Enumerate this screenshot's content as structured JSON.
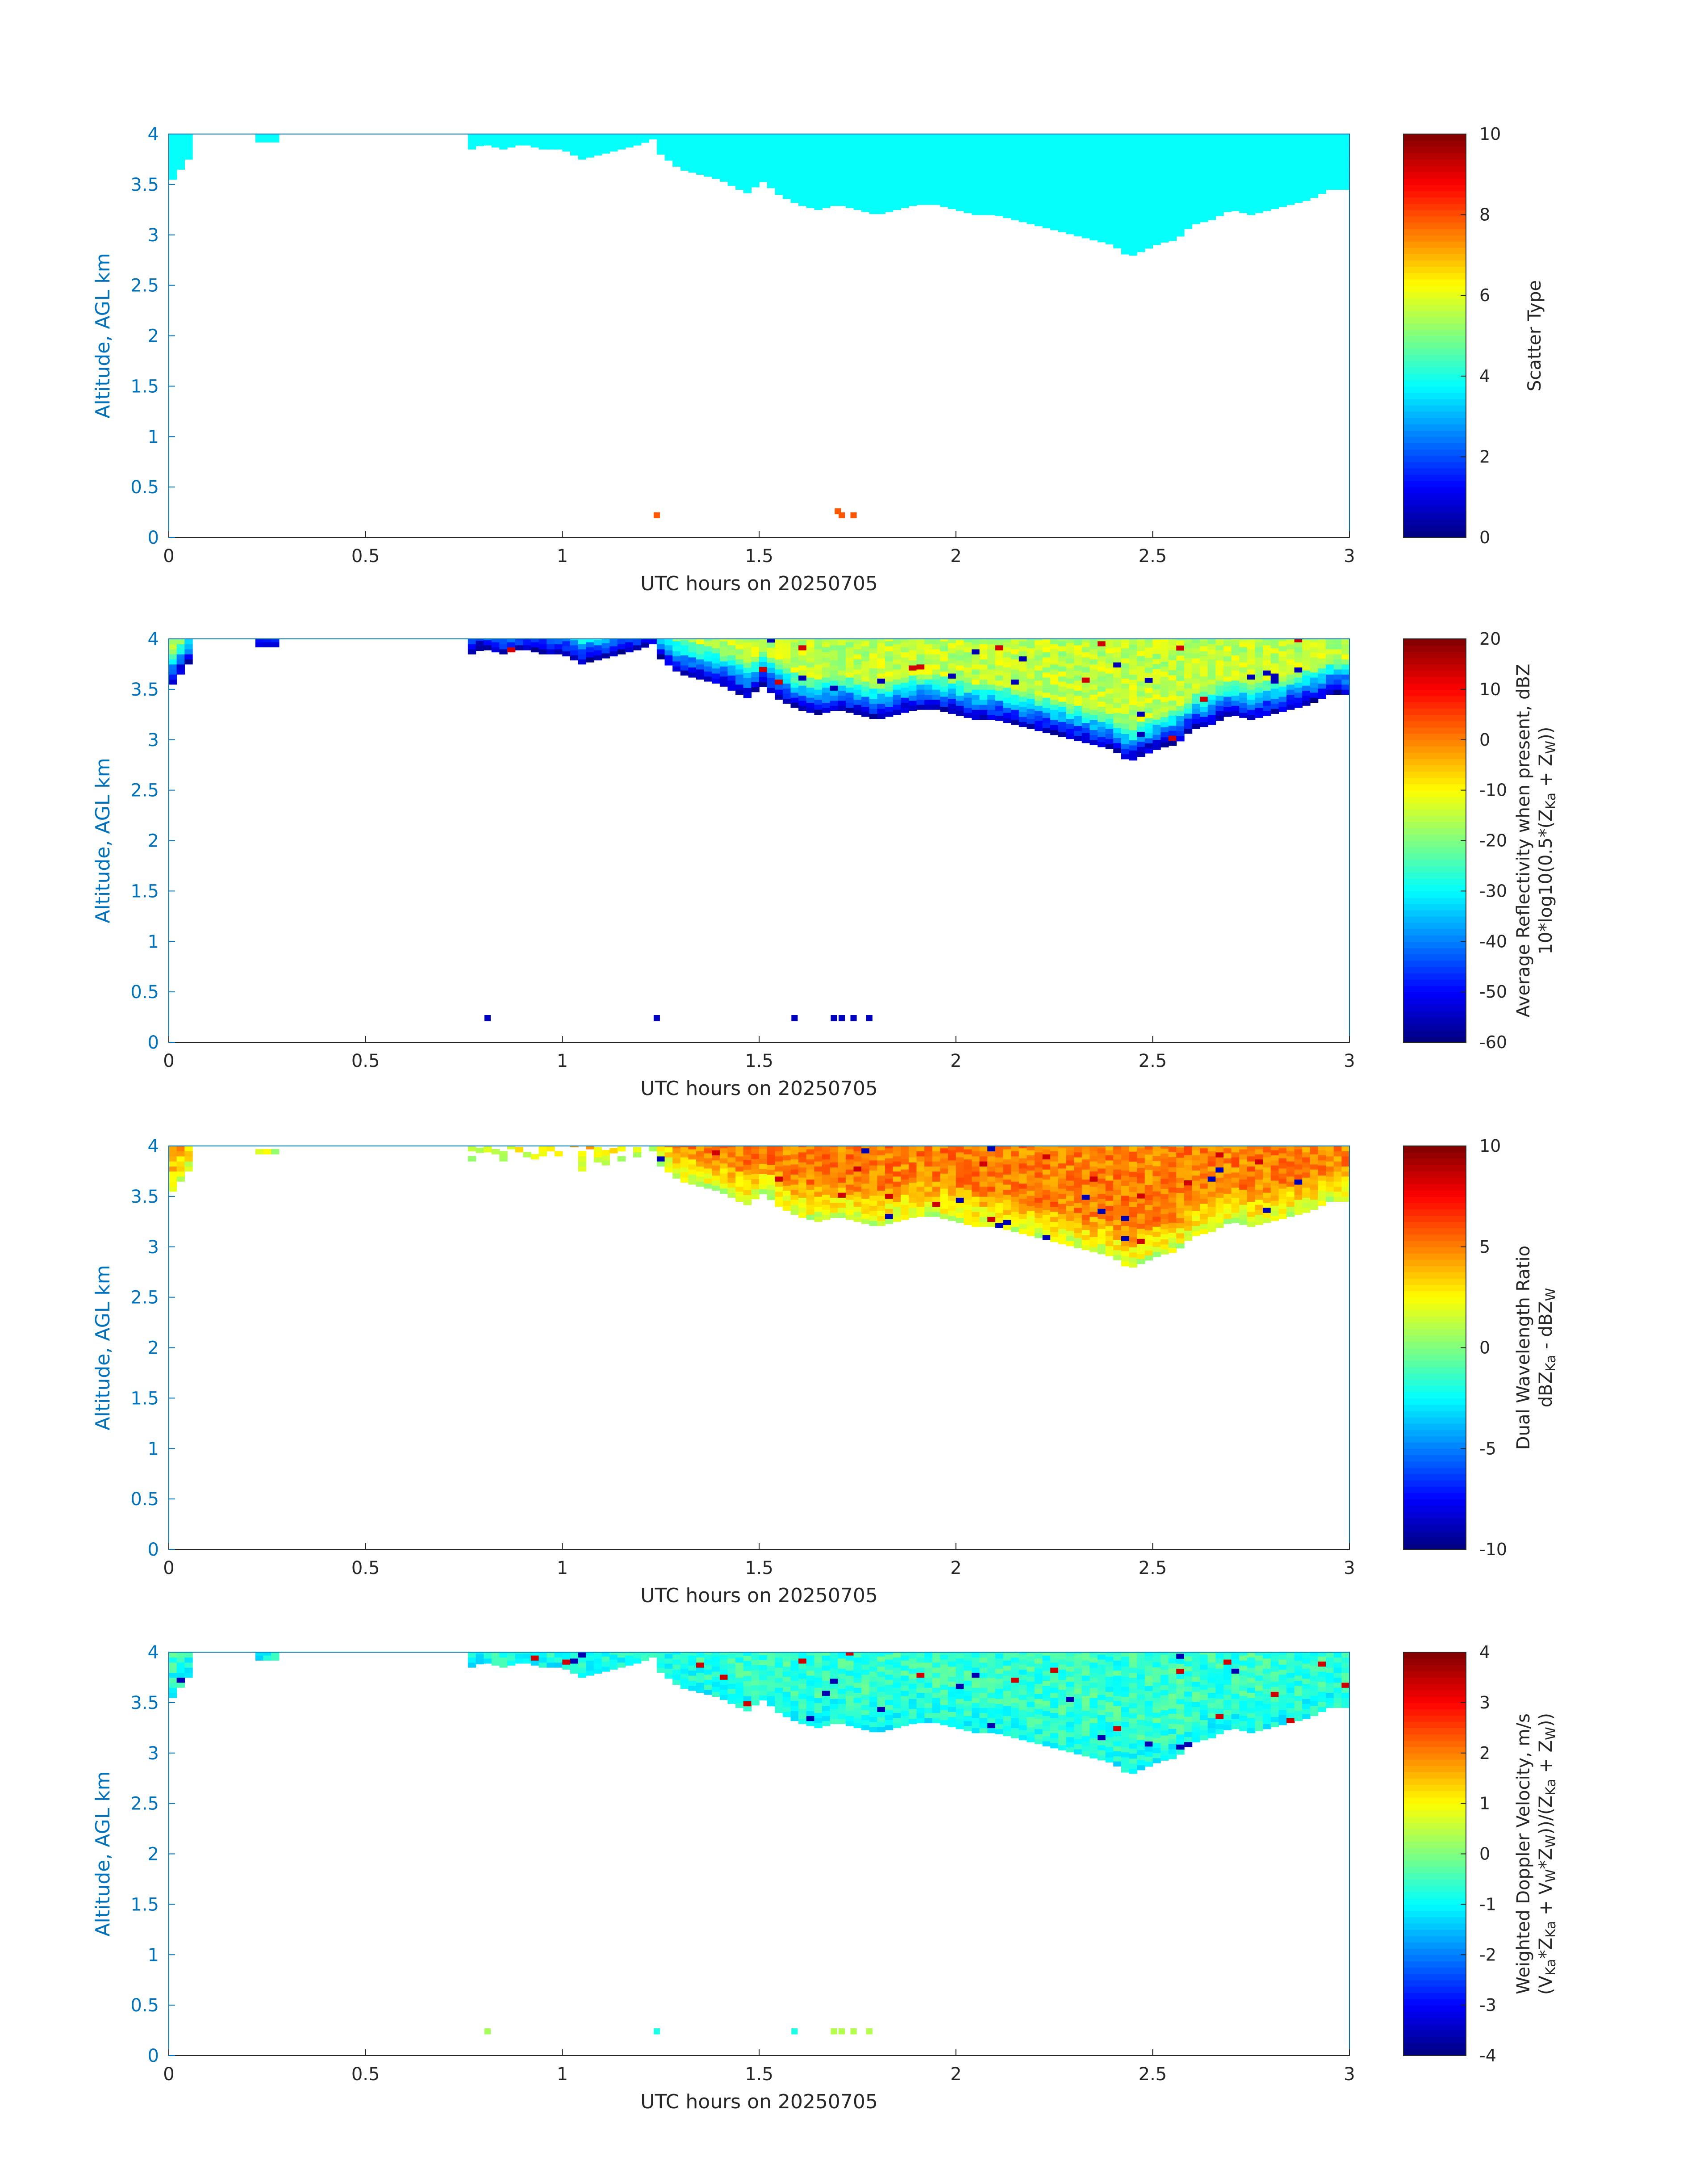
{
  "chart_data": [
    {
      "type": "heatmap",
      "xlabel": "UTC hours on 20250705",
      "ylabel": "Altitude, AGL km",
      "xlim": [
        0,
        3
      ],
      "ylim": [
        0,
        4
      ],
      "xticks": [
        "0",
        "0.5",
        "1",
        "1.5",
        "2",
        "2.5",
        "3"
      ],
      "yticks": [
        "0",
        "0.5",
        "1",
        "1.5",
        "2",
        "2.5",
        "3",
        "3.5",
        "4"
      ],
      "colorbar": {
        "label": [
          "Scatter Type"
        ],
        "range": [
          0,
          10
        ],
        "ticks": [
          "0",
          "2",
          "4",
          "6",
          "8",
          "10"
        ],
        "colormap": "jet"
      },
      "field": {
        "cloud_value": 3.8,
        "extra_cells": [
          [
            1.24,
            0.22,
            7.9
          ],
          [
            1.7,
            0.26,
            7.9
          ],
          [
            1.71,
            0.22,
            7.9
          ],
          [
            1.74,
            0.22,
            7.9
          ]
        ],
        "sparse_top": true
      }
    },
    {
      "type": "heatmap",
      "xlabel": "UTC hours on 20250705",
      "ylabel": "Altitude, AGL km",
      "xlim": [
        0,
        3
      ],
      "ylim": [
        0,
        4
      ],
      "xticks": [
        "0",
        "0.5",
        "1",
        "1.5",
        "2",
        "2.5",
        "3"
      ],
      "yticks": [
        "0",
        "0.5",
        "1",
        "1.5",
        "2",
        "2.5",
        "3",
        "3.5",
        "4"
      ],
      "colorbar": {
        "label": [
          "Average Reflectivity when present, dBZ",
          "10*log10(0.5*(Z",
          "Ka",
          " + Z",
          "W",
          "))"
        ],
        "range": [
          -60,
          20
        ],
        "ticks": [
          "-60",
          "-50",
          "-40",
          "-30",
          "-20",
          "-10",
          "0",
          "10",
          "20"
        ],
        "colormap": "jet"
      },
      "field": {
        "base_value": -55,
        "top_value": -15,
        "extra_cells": [
          [
            0.81,
            0.24,
            -55
          ],
          [
            1.24,
            0.24,
            -55
          ],
          [
            1.59,
            0.24,
            -55
          ],
          [
            1.69,
            0.24,
            -55
          ],
          [
            1.71,
            0.24,
            -55
          ],
          [
            1.74,
            0.24,
            -55
          ],
          [
            1.78,
            0.24,
            -55
          ]
        ],
        "sparse_top": true
      }
    },
    {
      "type": "heatmap",
      "xlabel": "UTC hours on 20250705",
      "ylabel": "Altitude, AGL km",
      "xlim": [
        0,
        3
      ],
      "ylim": [
        0,
        4
      ],
      "xticks": [
        "0",
        "0.5",
        "1",
        "1.5",
        "2",
        "2.5",
        "3"
      ],
      "yticks": [
        "0",
        "0.5",
        "1",
        "1.5",
        "2",
        "2.5",
        "3",
        "3.5",
        "4"
      ],
      "colorbar": {
        "label": [
          "Dual Wavelength Ratio",
          "dBZ",
          "Ka",
          " - dBZ",
          "W"
        ],
        "range": [
          -10,
          10
        ],
        "ticks": [
          "-10",
          "-5",
          "0",
          "5",
          "10"
        ],
        "colormap": "jet"
      },
      "field": {
        "base_value": 1.5,
        "top_value": 5.0,
        "extra_cells": [],
        "sparse_top": false
      }
    },
    {
      "type": "heatmap",
      "xlabel": "UTC hours on 20250705",
      "ylabel": "Altitude, AGL km",
      "xlim": [
        0,
        3
      ],
      "ylim": [
        0,
        4
      ],
      "xticks": [
        "0",
        "0.5",
        "1",
        "1.5",
        "2",
        "2.5",
        "3"
      ],
      "yticks": [
        "0",
        "0.5",
        "1",
        "1.5",
        "2",
        "2.5",
        "3",
        "3.5",
        "4"
      ],
      "colorbar": {
        "label": [
          "Weighted Doppler Velocity, m/s",
          "(V",
          "Ka",
          "*Z",
          "Ka",
          " + V",
          "W",
          "*Z",
          "W",
          "))/(Z",
          "Ka",
          " + Z",
          "W",
          "))"
        ],
        "range": [
          -4,
          4
        ],
        "ticks": [
          "-4",
          "-3",
          "-2",
          "-1",
          "0",
          "1",
          "2",
          "3",
          "4"
        ],
        "colormap": "jet"
      },
      "field": {
        "base_value": -0.9,
        "top_value": -0.6,
        "extra_cells": [
          [
            0.81,
            0.24,
            0.3
          ],
          [
            1.24,
            0.24,
            -0.8
          ],
          [
            1.59,
            0.24,
            -0.8
          ],
          [
            1.69,
            0.24,
            0.4
          ],
          [
            1.71,
            0.24,
            0.4
          ],
          [
            1.74,
            0.24,
            0.4
          ],
          [
            1.78,
            0.24,
            0.4
          ]
        ],
        "sparse_top": true
      }
    }
  ],
  "cloud_base_profile_km": {
    "times_h": [
      0.0,
      0.1,
      0.2,
      0.3,
      0.4,
      0.5,
      0.6,
      0.7,
      0.77,
      0.8,
      0.85,
      0.9,
      0.95,
      1.0,
      1.05,
      1.1,
      1.15,
      1.2,
      1.23,
      1.25,
      1.3,
      1.35,
      1.4,
      1.45,
      1.48,
      1.5,
      1.52,
      1.55,
      1.6,
      1.65,
      1.7,
      1.75,
      1.8,
      1.85,
      1.9,
      1.95,
      2.0,
      2.05,
      2.1,
      2.15,
      2.2,
      2.25,
      2.3,
      2.35,
      2.4,
      2.44,
      2.48,
      2.52,
      2.56,
      2.6,
      2.65,
      2.7,
      2.75,
      2.8,
      2.85,
      2.9,
      2.95,
      3.0
    ],
    "base_km": [
      3.5,
      4.0,
      4.0,
      4.0,
      4.0,
      4.0,
      4.0,
      4.0,
      3.85,
      3.9,
      3.85,
      3.9,
      3.85,
      3.85,
      3.75,
      3.8,
      3.85,
      3.9,
      3.95,
      3.8,
      3.65,
      3.6,
      3.55,
      3.45,
      3.4,
      3.55,
      3.5,
      3.4,
      3.3,
      3.25,
      3.3,
      3.25,
      3.2,
      3.25,
      3.3,
      3.3,
      3.25,
      3.2,
      3.2,
      3.15,
      3.1,
      3.05,
      3.0,
      2.95,
      2.9,
      2.78,
      2.85,
      2.92,
      2.95,
      3.1,
      3.15,
      3.25,
      3.2,
      3.25,
      3.3,
      3.35,
      3.45,
      3.45
    ]
  }
}
